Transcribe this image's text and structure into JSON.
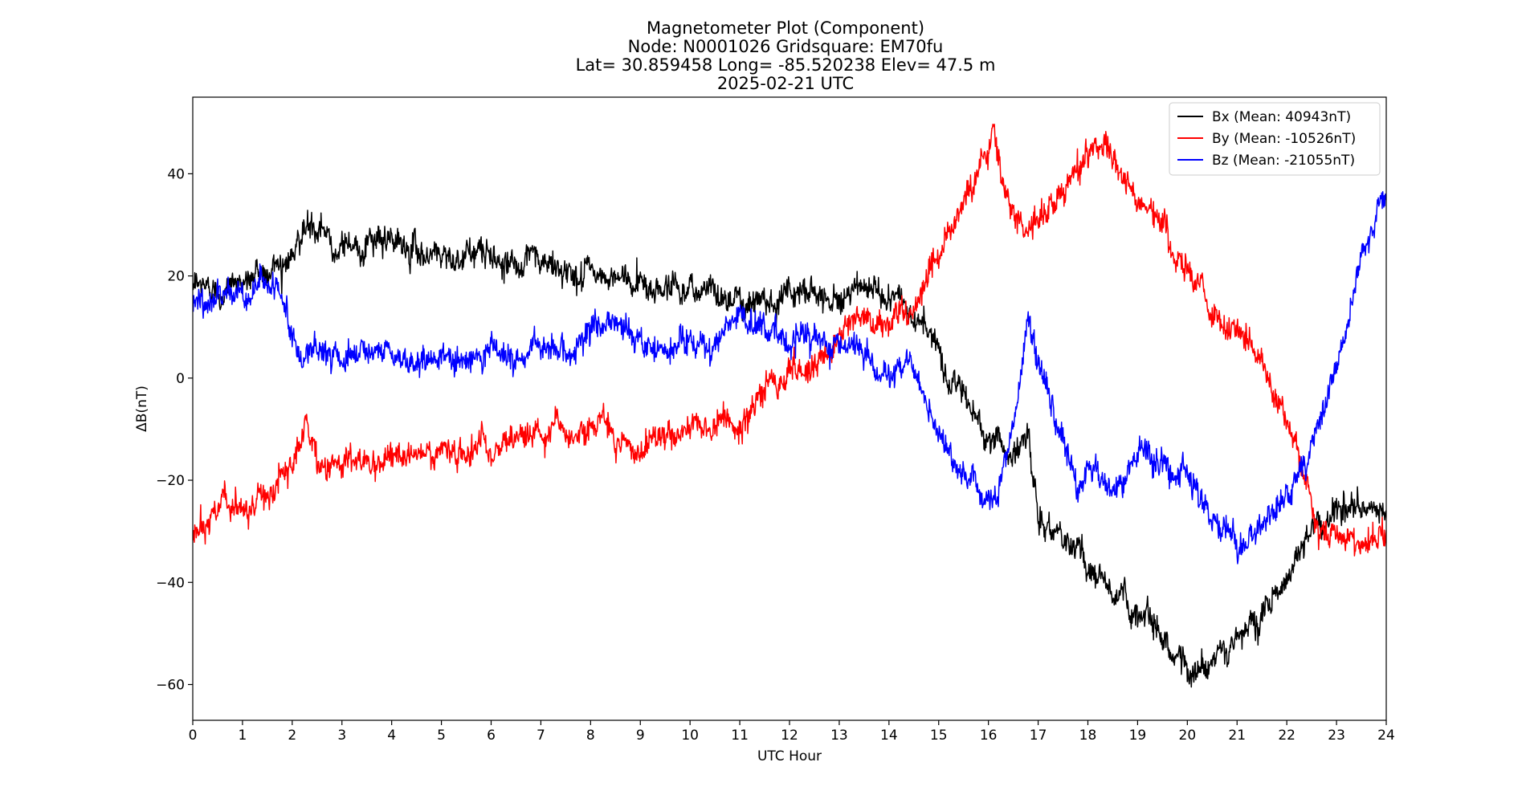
{
  "chart_data": {
    "type": "line",
    "title": [
      "Magnetometer Plot (Component)",
      "Node:  N0001026     Gridsquare:  EM70fu",
      "Lat= 30.859458    Long= -85.520238    Elev= 47.5 m",
      "2025-02-21  UTC"
    ],
    "xlabel": "UTC Hour",
    "ylabel": "ΔB(nT)",
    "xlim": [
      0,
      24
    ],
    "ylim": [
      -67,
      55
    ],
    "xticks": [
      0,
      1,
      2,
      3,
      4,
      5,
      6,
      7,
      8,
      9,
      10,
      11,
      12,
      13,
      14,
      15,
      16,
      17,
      18,
      19,
      20,
      21,
      22,
      23,
      24
    ],
    "yticks": [
      -60,
      -40,
      -20,
      0,
      20,
      40
    ],
    "ytick_labels": [
      "−60",
      "−40",
      "−20",
      "0",
      "20",
      "40"
    ],
    "grid": false,
    "legend_position": "top-right",
    "series": [
      {
        "name": "Bx (Mean: 40943nT)",
        "color": "#000000",
        "x": [
          0,
          0.5,
          1,
          1.5,
          2,
          2.3,
          2.5,
          3,
          3.5,
          4,
          4.5,
          5,
          5.5,
          6,
          6.5,
          7,
          7.5,
          8,
          8.5,
          9,
          9.5,
          10,
          10.5,
          11,
          11.5,
          12,
          12.5,
          13,
          13.5,
          14,
          14.5,
          15,
          15.5,
          16,
          16.5,
          16.8,
          17,
          17.5,
          18,
          18.5,
          19,
          19.5,
          20,
          20.5,
          21,
          21.5,
          22,
          22.5,
          23,
          23.5,
          24
        ],
        "y": [
          17,
          18,
          19,
          21,
          25,
          30,
          27,
          27,
          26,
          26,
          25,
          25,
          24,
          24,
          23,
          22,
          21,
          20,
          19,
          19,
          18,
          18,
          17,
          16,
          16,
          17,
          17,
          17,
          17,
          16,
          13,
          5,
          -4,
          -11,
          -15,
          -12,
          -28,
          -31,
          -37,
          -42,
          -45,
          -50,
          -57,
          -55,
          -53,
          -45,
          -38,
          -30,
          -25,
          -27,
          -27
        ]
      },
      {
        "name": "By (Mean: -10526nT)",
        "color": "#ff0000",
        "x": [
          0,
          0.3,
          0.6,
          0.9,
          1.2,
          1.6,
          2,
          2.25,
          2.5,
          3,
          3.5,
          4,
          4.5,
          5,
          5.5,
          6,
          6.5,
          7,
          7.5,
          8,
          8.3,
          8.5,
          8.8,
          9,
          9.5,
          10,
          10.5,
          11,
          11.5,
          12,
          12.5,
          13,
          13.5,
          14,
          14.5,
          15,
          15.5,
          16,
          16.1,
          16.3,
          16.5,
          16.8,
          17,
          17.5,
          18,
          18.3,
          18.5,
          19,
          19.5,
          20,
          20.5,
          21,
          21.5,
          22,
          22.3,
          22.6,
          23,
          23.5,
          24
        ],
        "y": [
          -30,
          -28,
          -24,
          -27,
          -26,
          -24,
          -18,
          -9,
          -16,
          -18,
          -18,
          -16,
          -15,
          -15,
          -15,
          -14,
          -12,
          -11,
          -12,
          -9,
          -8,
          -10,
          -14,
          -14,
          -11,
          -10,
          -9,
          -8,
          -3,
          1,
          2,
          10,
          13,
          11,
          14,
          24,
          33,
          44,
          49,
          38,
          31,
          29,
          33,
          38,
          43,
          47,
          44,
          34,
          30,
          21,
          14,
          9,
          3,
          -8,
          -18,
          -28,
          -32,
          -32,
          -30
        ]
      },
      {
        "name": "Bz (Mean: -21055nT)",
        "color": "#0000ff",
        "x": [
          0,
          0.5,
          1,
          1.5,
          1.8,
          2.1,
          2.5,
          3,
          3.5,
          4,
          4.5,
          5,
          5.5,
          6,
          6.5,
          7,
          7.5,
          8,
          8.5,
          9,
          9.5,
          10,
          10.5,
          11,
          11.3,
          11.7,
          12,
          12.5,
          13,
          13.5,
          14,
          14.3,
          14.5,
          14.7,
          15,
          15.5,
          16,
          16.2,
          16.5,
          16.8,
          17,
          17.5,
          17.8,
          18,
          18.5,
          19,
          19.5,
          20,
          20.5,
          21,
          21.5,
          22,
          22.5,
          23,
          23.5,
          24
        ],
        "y": [
          12,
          16,
          19,
          20,
          16,
          5,
          7,
          5,
          4,
          4,
          3,
          3,
          3,
          4,
          3,
          5,
          6,
          8,
          12,
          6,
          5,
          6,
          7,
          13,
          10,
          10,
          8,
          6,
          5,
          5,
          2,
          2,
          3,
          -3,
          -11,
          -19,
          -22,
          -24,
          -10,
          11,
          2,
          -11,
          -21,
          -17,
          -23,
          -15,
          -18,
          -16,
          -27,
          -35,
          -29,
          -23,
          -14,
          3,
          25,
          35
        ]
      }
    ]
  }
}
